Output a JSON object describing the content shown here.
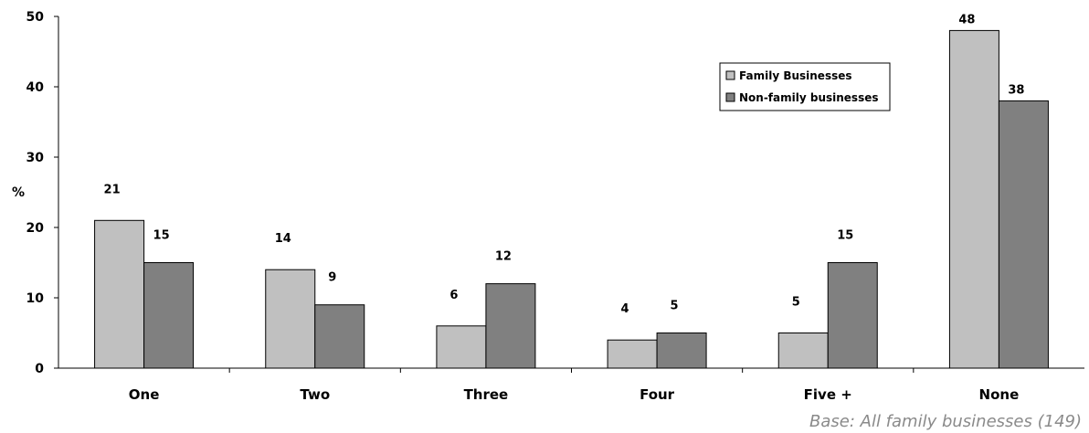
{
  "chart_data": {
    "type": "bar",
    "categories": [
      "One",
      "Two",
      "Three",
      "Four",
      "Five +",
      "None"
    ],
    "series": [
      {
        "name": "Family Businesses",
        "values": [
          21,
          14,
          6,
          4,
          5,
          48
        ],
        "color": "#c0c0c0"
      },
      {
        "name": "Non-family businesses",
        "values": [
          15,
          9,
          12,
          5,
          15,
          38
        ],
        "color": "#808080"
      }
    ],
    "ylabel": "%",
    "ylim": [
      0,
      50
    ],
    "yticks": [
      0,
      10,
      20,
      30,
      40,
      50
    ],
    "grid": false,
    "legend_position": "top-right",
    "data_labels": true
  },
  "footnote": "Base: All family businesses (149)"
}
